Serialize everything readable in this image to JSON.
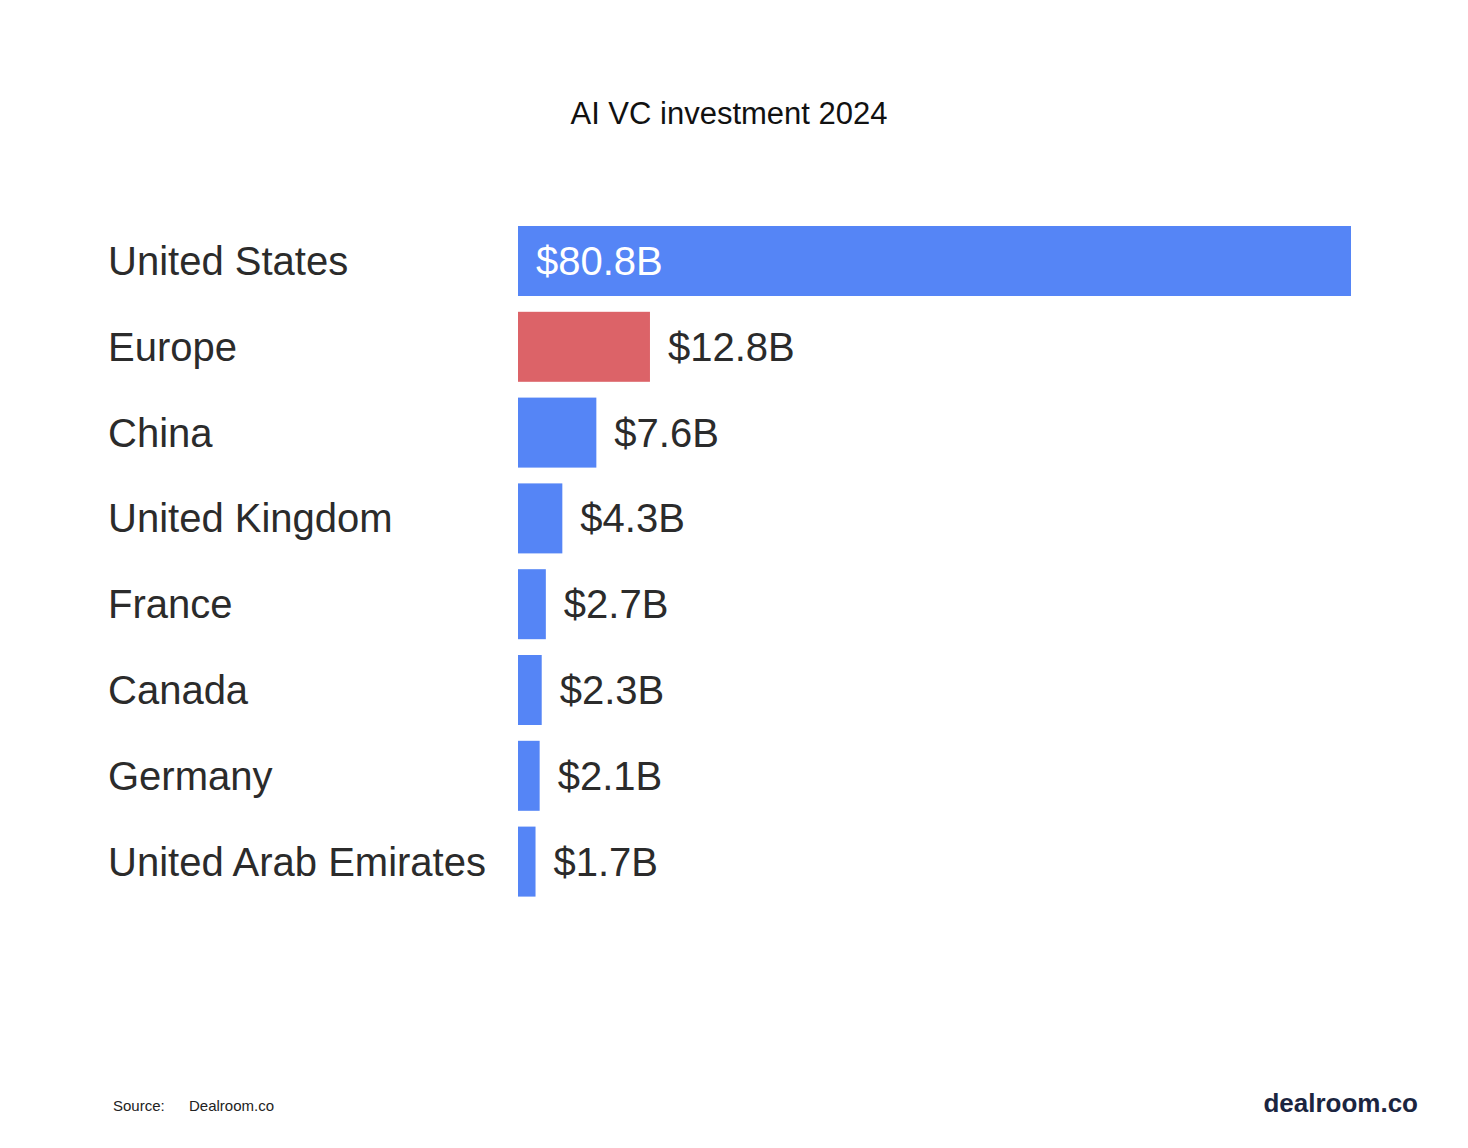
{
  "chart_data": {
    "type": "bar",
    "title": "AI VC investment 2024",
    "orientation": "horizontal",
    "categories": [
      "United States",
      "Europe",
      "China",
      "United Kingdom",
      "France",
      "Canada",
      "Germany",
      "United Arab Emirates"
    ],
    "values": [
      80.8,
      12.8,
      7.6,
      4.3,
      2.7,
      2.3,
      2.1,
      1.7
    ],
    "value_labels": [
      "$80.8B",
      "$12.8B",
      "$7.6B",
      "$4.3B",
      "$2.7B",
      "$2.3B",
      "$2.1B",
      "$1.7B"
    ],
    "colors": [
      "#5585f6",
      "#dc6368",
      "#5585f6",
      "#5585f6",
      "#5585f6",
      "#5585f6",
      "#5585f6",
      "#5585f6"
    ],
    "xlim": [
      0,
      80.8
    ],
    "data_labels": true,
    "tick_labels": "y",
    "grid": false,
    "source_label": "Source:",
    "source": "Dealroom.co",
    "brand": "dealroom.co"
  }
}
